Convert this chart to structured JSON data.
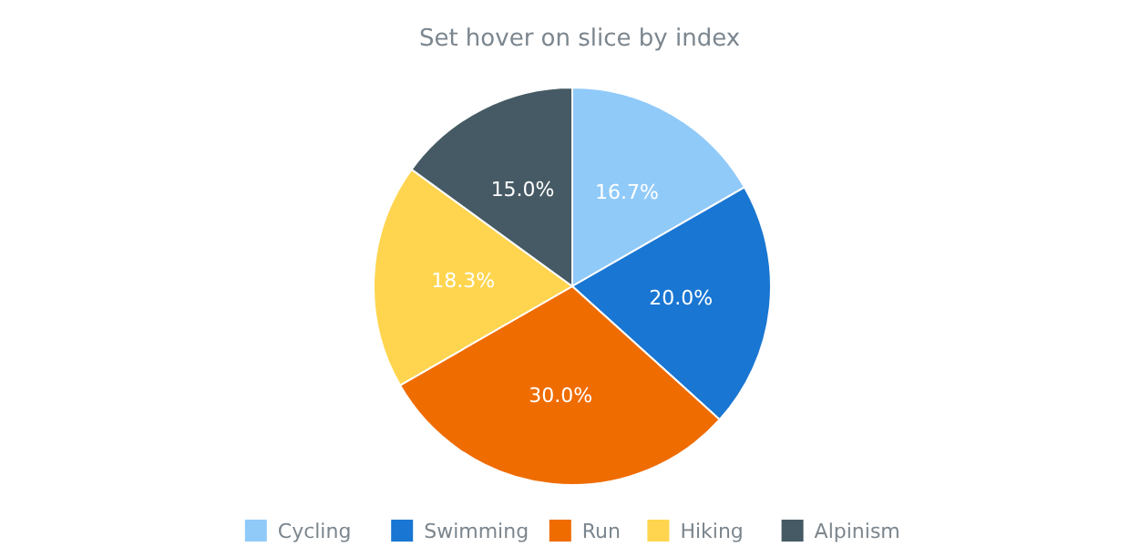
{
  "chart_data": {
    "type": "pie",
    "title": "Set hover on slice by index",
    "categories": [
      "Cycling",
      "Swimming",
      "Run",
      "Hiking",
      "Alpinism"
    ],
    "values": [
      16.7,
      20.0,
      30.0,
      18.3,
      15.0
    ],
    "value_labels": [
      "16.7%",
      "20.0%",
      "30.0%",
      "18.3%",
      "15.0%"
    ],
    "colors": [
      "#90caf9",
      "#1976d2",
      "#ef6c00",
      "#ffd54f",
      "#455a64"
    ],
    "legend": "bottom"
  }
}
